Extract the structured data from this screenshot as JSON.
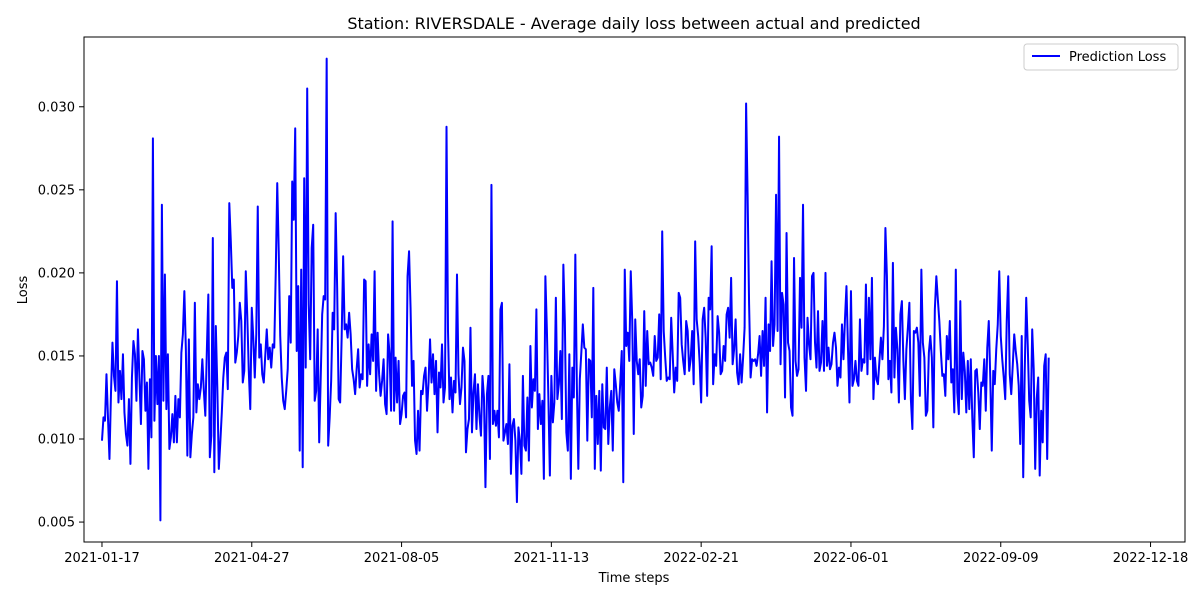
{
  "chart_data": {
    "type": "line",
    "title": "Station: RIVERSDALE - Average daily loss between actual and predicted",
    "xlabel": "Time steps",
    "ylabel": "Loss",
    "x_range": [
      "2021-01-05",
      "2023-01-10"
    ],
    "ylim": [
      0.0038,
      0.0342
    ],
    "grid": false,
    "legend_position": "top-right",
    "x_ticks": [
      "2021-01-17",
      "2021-04-27",
      "2021-08-05",
      "2021-11-13",
      "2022-02-21",
      "2022-06-01",
      "2022-09-09",
      "2022-12-18"
    ],
    "y_ticks": [
      0.005,
      0.01,
      0.015,
      0.02,
      0.025,
      0.03
    ],
    "series": [
      {
        "name": "Prediction Loss",
        "color": "#0000ff",
        "x_start": "2021-01-17",
        "x_step_days": 1,
        "values": [
          0.0099,
          0.0113,
          0.0111,
          0.0139,
          0.0113,
          0.0088,
          0.0127,
          0.0158,
          0.0138,
          0.0129,
          0.0195,
          0.0122,
          0.0141,
          0.0124,
          0.0151,
          0.0116,
          0.0103,
          0.0096,
          0.0124,
          0.0085,
          0.0137,
          0.0159,
          0.0151,
          0.0123,
          0.0166,
          0.0137,
          0.0109,
          0.0153,
          0.0148,
          0.0117,
          0.0134,
          0.0082,
          0.0136,
          0.0101,
          0.0281,
          0.0111,
          0.015,
          0.0121,
          0.015,
          0.0051,
          0.0241,
          0.0123,
          0.0199,
          0.0118,
          0.0151,
          0.0094,
          0.0101,
          0.0115,
          0.0098,
          0.0126,
          0.0098,
          0.0124,
          0.0113,
          0.0152,
          0.0163,
          0.0189,
          0.0154,
          0.009,
          0.016,
          0.0089,
          0.0103,
          0.0113,
          0.0182,
          0.0116,
          0.0133,
          0.0124,
          0.0131,
          0.0148,
          0.0129,
          0.0114,
          0.0153,
          0.0187,
          0.0089,
          0.0102,
          0.0221,
          0.008,
          0.0168,
          0.0131,
          0.0082,
          0.0098,
          0.0116,
          0.0137,
          0.0149,
          0.0152,
          0.013,
          0.0242,
          0.0219,
          0.0191,
          0.0196,
          0.0146,
          0.0152,
          0.0162,
          0.0182,
          0.0171,
          0.0134,
          0.0141,
          0.0201,
          0.0174,
          0.0141,
          0.0118,
          0.0179,
          0.0161,
          0.0137,
          0.0163,
          0.024,
          0.0149,
          0.0157,
          0.0139,
          0.0134,
          0.015,
          0.0166,
          0.0148,
          0.0155,
          0.0143,
          0.0157,
          0.0155,
          0.02,
          0.0254,
          0.0213,
          0.0162,
          0.0137,
          0.0123,
          0.0118,
          0.0129,
          0.0142,
          0.0186,
          0.0158,
          0.0255,
          0.0232,
          0.0287,
          0.0153,
          0.0192,
          0.0093,
          0.0202,
          0.0083,
          0.0257,
          0.0143,
          0.0311,
          0.0181,
          0.0148,
          0.0215,
          0.0229,
          0.0123,
          0.0129,
          0.0166,
          0.0098,
          0.0136,
          0.0175,
          0.0186,
          0.0184,
          0.0329,
          0.0096,
          0.0113,
          0.0135,
          0.0176,
          0.0166,
          0.0236,
          0.0191,
          0.0124,
          0.0122,
          0.0161,
          0.021,
          0.0166,
          0.0169,
          0.0161,
          0.0176,
          0.0163,
          0.0142,
          0.0136,
          0.0127,
          0.0142,
          0.0154,
          0.0131,
          0.0139,
          0.0136,
          0.0196,
          0.0195,
          0.0132,
          0.0157,
          0.0139,
          0.0163,
          0.0147,
          0.0201,
          0.0129,
          0.0164,
          0.0139,
          0.0126,
          0.0135,
          0.0148,
          0.0121,
          0.0115,
          0.0163,
          0.0151,
          0.0117,
          0.0231,
          0.0117,
          0.0149,
          0.0122,
          0.0147,
          0.0109,
          0.0115,
          0.0126,
          0.0128,
          0.0113,
          0.0198,
          0.0213,
          0.0179,
          0.0132,
          0.0147,
          0.0099,
          0.0091,
          0.0117,
          0.0093,
          0.0129,
          0.0127,
          0.0138,
          0.0143,
          0.0117,
          0.0134,
          0.016,
          0.0134,
          0.0151,
          0.0127,
          0.0147,
          0.0104,
          0.014,
          0.0131,
          0.0157,
          0.0122,
          0.0131,
          0.0288,
          0.0165,
          0.0124,
          0.0137,
          0.0116,
          0.0135,
          0.0128,
          0.0199,
          0.0139,
          0.0121,
          0.0131,
          0.0155,
          0.0147,
          0.0092,
          0.0106,
          0.0112,
          0.0167,
          0.0104,
          0.0128,
          0.0139,
          0.0106,
          0.0133,
          0.0114,
          0.0102,
          0.0138,
          0.0125,
          0.0071,
          0.0127,
          0.0138,
          0.0088,
          0.0253,
          0.0109,
          0.0117,
          0.0108,
          0.0117,
          0.0101,
          0.0178,
          0.0182,
          0.0099,
          0.0104,
          0.0109,
          0.0097,
          0.0145,
          0.0079,
          0.0108,
          0.0112,
          0.0099,
          0.0062,
          0.0107,
          0.0099,
          0.0079,
          0.0138,
          0.0096,
          0.0093,
          0.0125,
          0.0087,
          0.0156,
          0.0119,
          0.0136,
          0.0129,
          0.0178,
          0.0106,
          0.0127,
          0.0109,
          0.0123,
          0.0076,
          0.0198,
          0.0166,
          0.0125,
          0.0078,
          0.0138,
          0.011,
          0.0122,
          0.0185,
          0.0124,
          0.0133,
          0.0153,
          0.0112,
          0.0205,
          0.0171,
          0.0104,
          0.0093,
          0.0151,
          0.0076,
          0.0143,
          0.0125,
          0.0211,
          0.0133,
          0.0082,
          0.0136,
          0.0152,
          0.0169,
          0.0155,
          0.0154,
          0.0099,
          0.0148,
          0.0147,
          0.0113,
          0.0191,
          0.0082,
          0.0126,
          0.0097,
          0.0129,
          0.0081,
          0.0133,
          0.0107,
          0.0106,
          0.0143,
          0.0097,
          0.0119,
          0.0129,
          0.0093,
          0.0142,
          0.0133,
          0.0122,
          0.0117,
          0.0134,
          0.0153,
          0.0074,
          0.0202,
          0.0156,
          0.0164,
          0.0147,
          0.0201,
          0.0171,
          0.0103,
          0.0172,
          0.0147,
          0.0139,
          0.0148,
          0.0119,
          0.0126,
          0.0177,
          0.0132,
          0.0165,
          0.0145,
          0.0146,
          0.0143,
          0.0138,
          0.0162,
          0.0147,
          0.0149,
          0.0175,
          0.0136,
          0.0225,
          0.0165,
          0.0149,
          0.0135,
          0.0137,
          0.0136,
          0.0173,
          0.0151,
          0.0128,
          0.0143,
          0.0135,
          0.0188,
          0.0185,
          0.0157,
          0.0147,
          0.0139,
          0.0171,
          0.0165,
          0.0141,
          0.0148,
          0.0165,
          0.0133,
          0.0219,
          0.0172,
          0.0162,
          0.0146,
          0.0122,
          0.0172,
          0.0179,
          0.0161,
          0.0126,
          0.0185,
          0.0178,
          0.0216,
          0.0133,
          0.0151,
          0.0144,
          0.0174,
          0.0164,
          0.0139,
          0.0141,
          0.0156,
          0.0147,
          0.0175,
          0.0179,
          0.0161,
          0.0197,
          0.0145,
          0.0154,
          0.0172,
          0.014,
          0.0133,
          0.0151,
          0.0134,
          0.0149,
          0.0167,
          0.0302,
          0.0247,
          0.0181,
          0.0137,
          0.0148,
          0.0147,
          0.0148,
          0.0144,
          0.0151,
          0.0162,
          0.0138,
          0.0165,
          0.0144,
          0.0185,
          0.0116,
          0.0169,
          0.0153,
          0.0207,
          0.0156,
          0.0169,
          0.0247,
          0.0165,
          0.0282,
          0.0145,
          0.0188,
          0.0181,
          0.0125,
          0.0224,
          0.0158,
          0.0153,
          0.0119,
          0.0114,
          0.0209,
          0.0147,
          0.0138,
          0.0142,
          0.0197,
          0.0167,
          0.0241,
          0.0149,
          0.0129,
          0.0173,
          0.0157,
          0.0148,
          0.0198,
          0.02,
          0.0158,
          0.0143,
          0.0177,
          0.0141,
          0.0146,
          0.0171,
          0.0141,
          0.02,
          0.0144,
          0.0155,
          0.0142,
          0.0145,
          0.0158,
          0.0164,
          0.0155,
          0.0132,
          0.0143,
          0.0137,
          0.0169,
          0.0148,
          0.0172,
          0.0192,
          0.0155,
          0.0122,
          0.0189,
          0.0132,
          0.0136,
          0.0147,
          0.0135,
          0.0132,
          0.0172,
          0.0141,
          0.0148,
          0.0146,
          0.0193,
          0.0139,
          0.0185,
          0.0148,
          0.0197,
          0.0124,
          0.0149,
          0.0136,
          0.0133,
          0.0147,
          0.0161,
          0.0148,
          0.0168,
          0.0227,
          0.0198,
          0.0136,
          0.0147,
          0.0128,
          0.0206,
          0.0137,
          0.0167,
          0.0154,
          0.0122,
          0.0175,
          0.0183,
          0.0147,
          0.0124,
          0.0154,
          0.0167,
          0.0182,
          0.0124,
          0.0106,
          0.0165,
          0.0164,
          0.0167,
          0.0158,
          0.0126,
          0.0202,
          0.0158,
          0.0149,
          0.0114,
          0.0117,
          0.0152,
          0.0162,
          0.0149,
          0.0107,
          0.0178,
          0.0198,
          0.0184,
          0.0171,
          0.0153,
          0.0138,
          0.0139,
          0.0126,
          0.0162,
          0.0148,
          0.0171,
          0.0134,
          0.0142,
          0.0116,
          0.0202,
          0.0128,
          0.0115,
          0.0183,
          0.0124,
          0.0152,
          0.0141,
          0.0116,
          0.0147,
          0.0118,
          0.0148,
          0.0113,
          0.0089,
          0.0141,
          0.0142,
          0.0128,
          0.0106,
          0.0134,
          0.0132,
          0.0148,
          0.0117,
          0.0155,
          0.0171,
          0.0137,
          0.0093,
          0.0141,
          0.0133,
          0.0154,
          0.0169,
          0.0201,
          0.0162,
          0.0148,
          0.0137,
          0.0124,
          0.0171,
          0.0198,
          0.0139,
          0.0127,
          0.0144,
          0.0163,
          0.0153,
          0.0145,
          0.0132,
          0.0097,
          0.0162,
          0.0077,
          0.0141,
          0.0185,
          0.0157,
          0.0123,
          0.0113,
          0.0166,
          0.0142,
          0.0082,
          0.0124,
          0.0137,
          0.0078,
          0.0117,
          0.0098,
          0.0144,
          0.0151,
          0.0088,
          0.0149
        ]
      }
    ]
  }
}
